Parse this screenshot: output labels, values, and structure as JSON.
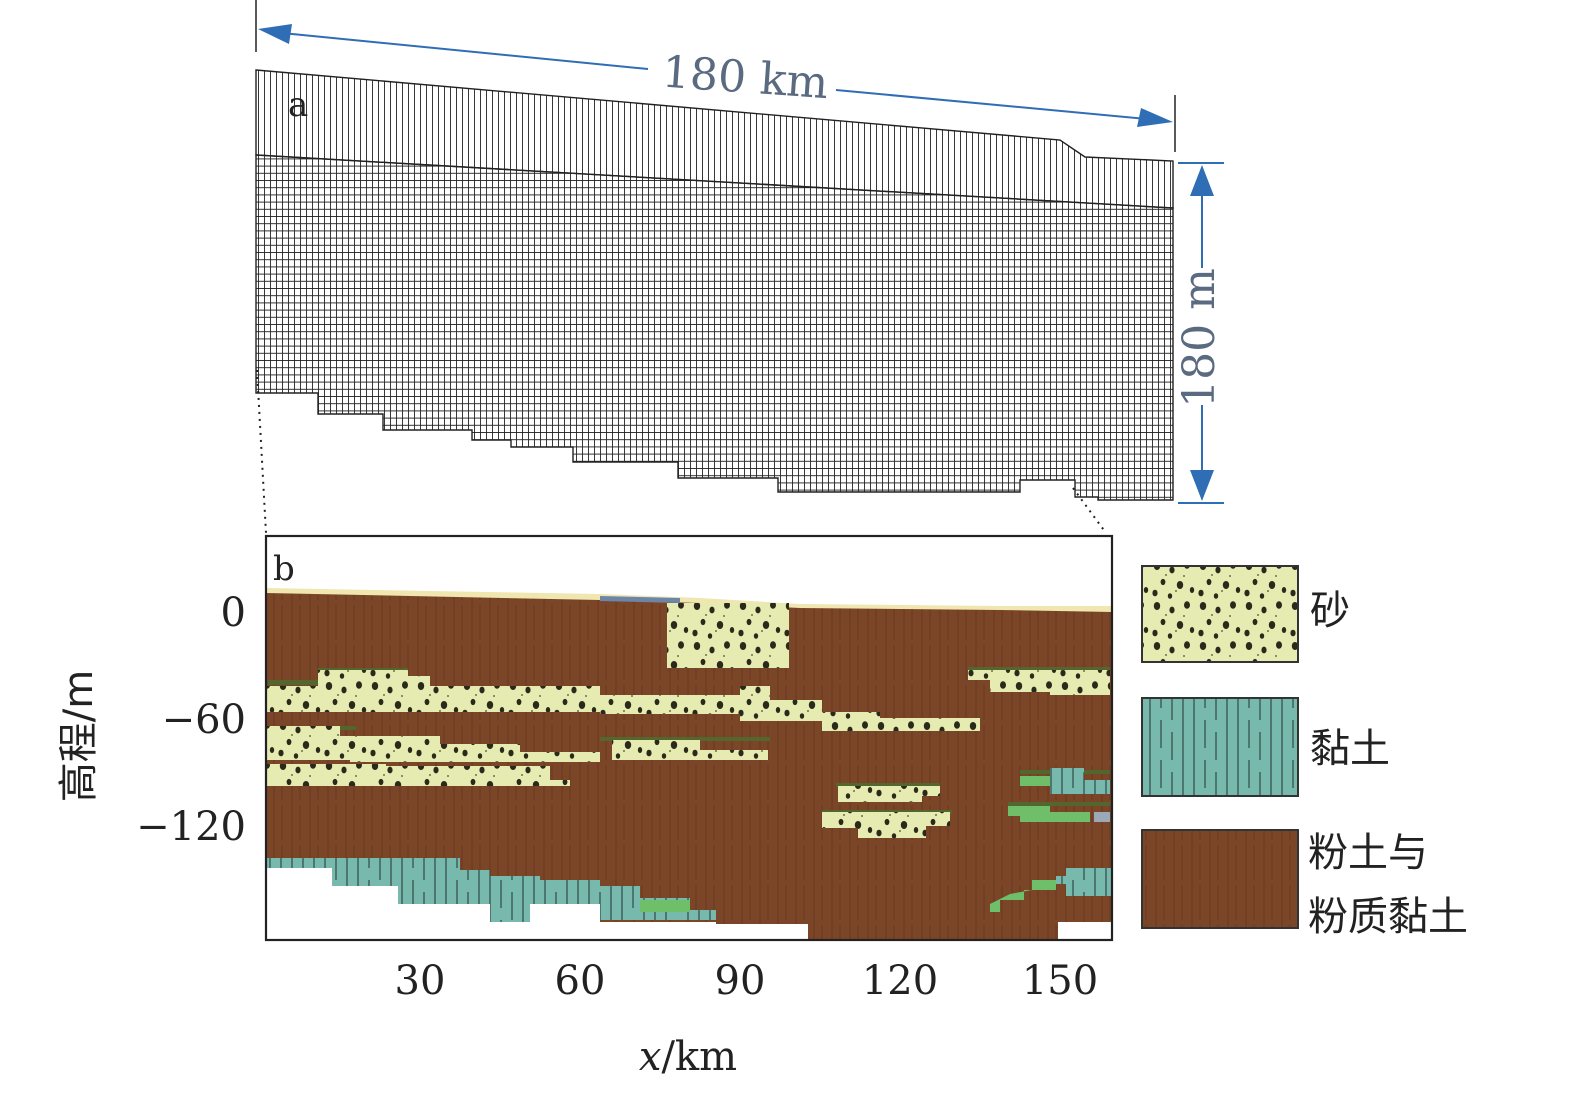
{
  "panel_a": {
    "label": "a",
    "width_dimension": "180 km",
    "depth_dimension": "180 m"
  },
  "panel_b": {
    "label": "b",
    "y_axis_label": "高程/m",
    "x_axis_label_var": "x",
    "x_axis_label_unit": "/km",
    "y_ticks": [
      "0",
      "−60",
      "−120"
    ],
    "x_ticks": [
      "30",
      "60",
      "90",
      "120",
      "150"
    ]
  },
  "legend": [
    {
      "id": "sand",
      "lines": [
        "砂"
      ],
      "color": "#e6ebb2"
    },
    {
      "id": "clay",
      "lines": [
        "黏土"
      ],
      "color": "#78b9ad"
    },
    {
      "id": "silt",
      "lines": [
        "粉土与",
        "粉质黏土"
      ],
      "color": "#7b4528"
    }
  ],
  "colors": {
    "dimension_arrow": "#2f6db5",
    "silt": "#7b4528",
    "sand": "#e6ebb2",
    "clay": "#78b9ad",
    "green_lens": "#6fbf6a"
  }
}
